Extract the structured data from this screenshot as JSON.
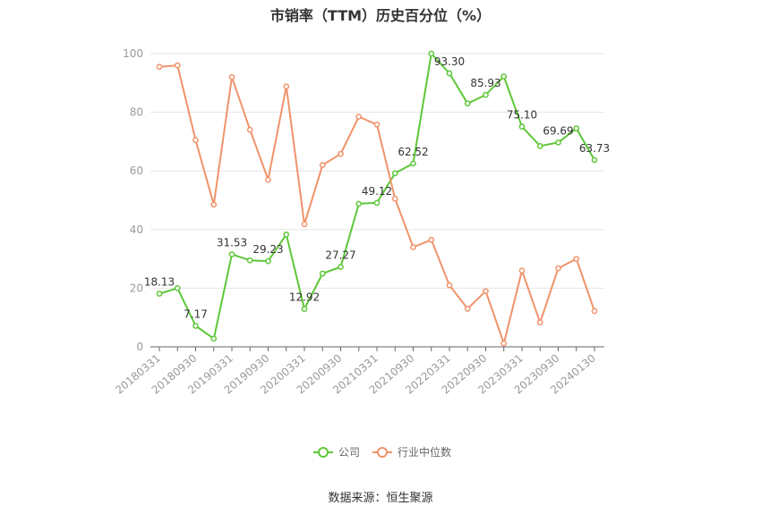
{
  "chart_data": {
    "type": "line",
    "title": "市销率（TTM）历史百分位（%）",
    "source": "数据来源：恒生聚源",
    "ylim": [
      0,
      100
    ],
    "y_ticks": [
      0,
      20,
      40,
      60,
      80,
      100
    ],
    "x_tick_labels": [
      "20180331",
      "20180930",
      "20190331",
      "20190930",
      "20200331",
      "20200930",
      "20210331",
      "20210930",
      "20220331",
      "20220930",
      "20230331",
      "20230930",
      "20240130"
    ],
    "grid": true,
    "legend_position": "bottom",
    "series": [
      {
        "name": "公司",
        "color": "#5dc738",
        "values": [
          18.13,
          20.0,
          7.17,
          2.8,
          31.53,
          29.5,
          29.23,
          38.3,
          12.92,
          25.0,
          27.27,
          48.8,
          49.12,
          59.2,
          62.52,
          100.0,
          93.3,
          83.0,
          85.93,
          92.2,
          75.1,
          68.5,
          69.69,
          74.5,
          63.73
        ],
        "data_labels": [
          {
            "index": 0,
            "text": "18.13"
          },
          {
            "index": 2,
            "text": "7.17"
          },
          {
            "index": 4,
            "text": "31.53"
          },
          {
            "index": 6,
            "text": "29.23"
          },
          {
            "index": 8,
            "text": "12.92"
          },
          {
            "index": 10,
            "text": "27.27"
          },
          {
            "index": 12,
            "text": "49.12"
          },
          {
            "index": 14,
            "text": "62.52"
          },
          {
            "index": 16,
            "text": "93.30"
          },
          {
            "index": 18,
            "text": "85.93"
          },
          {
            "index": 20,
            "text": "75.10"
          },
          {
            "index": 22,
            "text": "69.69"
          },
          {
            "index": 24,
            "text": "63.73"
          }
        ]
      },
      {
        "name": "行业中位数",
        "color": "#f0936a",
        "values": [
          95.5,
          96.0,
          70.5,
          48.5,
          92.0,
          74.0,
          57.0,
          88.8,
          41.8,
          62.0,
          65.8,
          78.5,
          75.8,
          50.5,
          34.0,
          36.5,
          21.0,
          13.0,
          19.0,
          1.2,
          26.0,
          8.3,
          26.8,
          30.0,
          12.2
        ],
        "data_labels": []
      }
    ]
  }
}
